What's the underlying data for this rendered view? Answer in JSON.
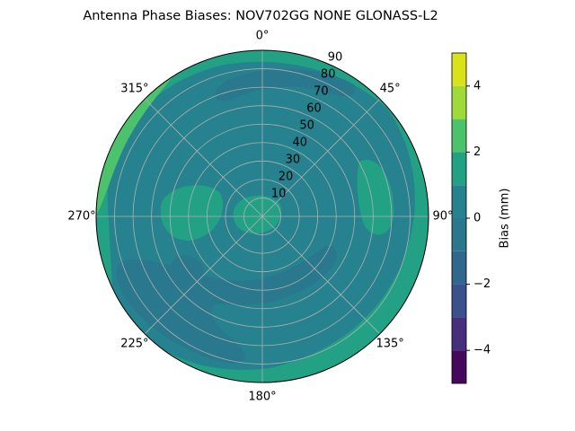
{
  "chart_data": {
    "type": "polar_contour",
    "title": "Antenna Phase Biases: NOV702GG        NONE GLONASS-L2",
    "rlim": [
      0,
      90
    ],
    "rticks": [
      10,
      20,
      30,
      40,
      50,
      60,
      70,
      80,
      90
    ],
    "thetaticks": [
      {
        "value": 0,
        "label": "0°"
      },
      {
        "value": 45,
        "label": "45°"
      },
      {
        "value": 90,
        "label": "90°"
      },
      {
        "value": 135,
        "label": "135°"
      },
      {
        "value": 180,
        "label": "180°"
      },
      {
        "value": 225,
        "label": "225°"
      },
      {
        "value": 270,
        "label": "270°"
      },
      {
        "value": 315,
        "label": "315°"
      }
    ],
    "levels": [
      -5,
      -4,
      -3,
      -2,
      -1,
      0,
      1,
      2,
      3,
      4,
      5
    ],
    "level_colors": [
      "#46085c",
      "#472f7d",
      "#3b518b",
      "#30678d",
      "#2a788e",
      "#26828e",
      "#22a185",
      "#4cc26c",
      "#9fda3a",
      "#dae319"
    ],
    "colorbar_label": "Bias (mm)",
    "clim": [
      -5,
      5
    ],
    "cticks": [
      {
        "value": -4,
        "label": "−4"
      },
      {
        "value": -2,
        "label": "−2"
      },
      0,
      2,
      4
    ],
    "grid": true
  }
}
